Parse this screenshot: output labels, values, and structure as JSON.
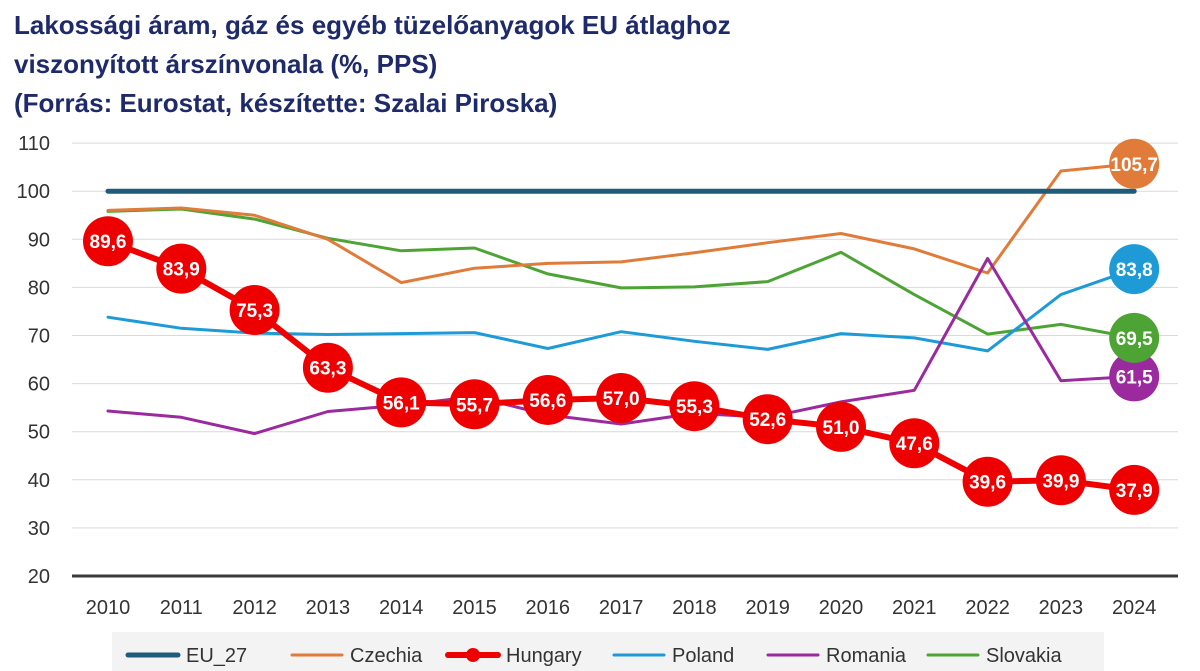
{
  "chart_data": {
    "type": "line",
    "title": [
      "Lakossági áram, gáz és egyéb tüzelőanyagok EU átlaghoz",
      "viszonyított árszínvonala  (%, PPS)",
      "(Forrás: Eurostat, készítette: Szalai Piroska)"
    ],
    "xlabel": "",
    "ylabel": "",
    "ylim": [
      20,
      110
    ],
    "yticks": [
      20,
      30,
      40,
      50,
      60,
      70,
      80,
      90,
      100,
      110
    ],
    "x": [
      "2010",
      "2011",
      "2012",
      "2013",
      "2014",
      "2015",
      "2016",
      "2017",
      "2018",
      "2019",
      "2020",
      "2021",
      "2022",
      "2023",
      "2024"
    ],
    "legend_position": "bottom",
    "series": [
      {
        "name": "EU_27",
        "color": "#1F5C7A",
        "values": [
          100,
          100,
          100,
          100,
          100,
          100,
          100,
          100,
          100,
          100,
          100,
          100,
          100,
          100,
          100
        ]
      },
      {
        "name": "Czechia",
        "color": "#E07B39",
        "values": [
          96.0,
          96.5,
          95.0,
          90.0,
          81.0,
          84.0,
          85.0,
          85.3,
          87.2,
          89.3,
          91.2,
          88.0,
          83.0,
          104.2,
          105.7
        ],
        "end_label": "105,7"
      },
      {
        "name": "Hungary",
        "color": "#EE0000",
        "values": [
          89.6,
          83.9,
          75.3,
          63.3,
          56.1,
          55.7,
          56.6,
          57.0,
          55.3,
          52.6,
          51.0,
          47.6,
          39.6,
          39.9,
          37.9
        ],
        "labels": [
          "89,6",
          "83,9",
          "75,3",
          "63,3",
          "56,1",
          "55,7",
          "56,6",
          "57,0",
          "55,3",
          "52,6",
          "51,0",
          "47,6",
          "39,6",
          "39,9",
          "37,9"
        ]
      },
      {
        "name": "Poland",
        "color": "#1E9BD7",
        "values": [
          73.8,
          71.5,
          70.5,
          70.2,
          70.4,
          70.6,
          67.3,
          70.8,
          68.8,
          67.1,
          70.4,
          69.5,
          66.8,
          78.5,
          83.8
        ],
        "end_label": "83,8"
      },
      {
        "name": "Romania",
        "color": "#9A2A9E",
        "values": [
          54.3,
          53.0,
          49.6,
          54.2,
          55.5,
          57.3,
          53.5,
          51.6,
          53.8,
          53.0,
          56.2,
          58.6,
          86.0,
          60.6,
          61.5
        ],
        "end_label": "61,5"
      },
      {
        "name": "Slovakia",
        "color": "#4DA435",
        "values": [
          95.8,
          96.3,
          94.2,
          90.2,
          87.6,
          88.2,
          82.8,
          79.9,
          80.1,
          81.2,
          87.3,
          78.5,
          70.3,
          72.3,
          69.5
        ],
        "end_label": "69,5"
      }
    ]
  }
}
